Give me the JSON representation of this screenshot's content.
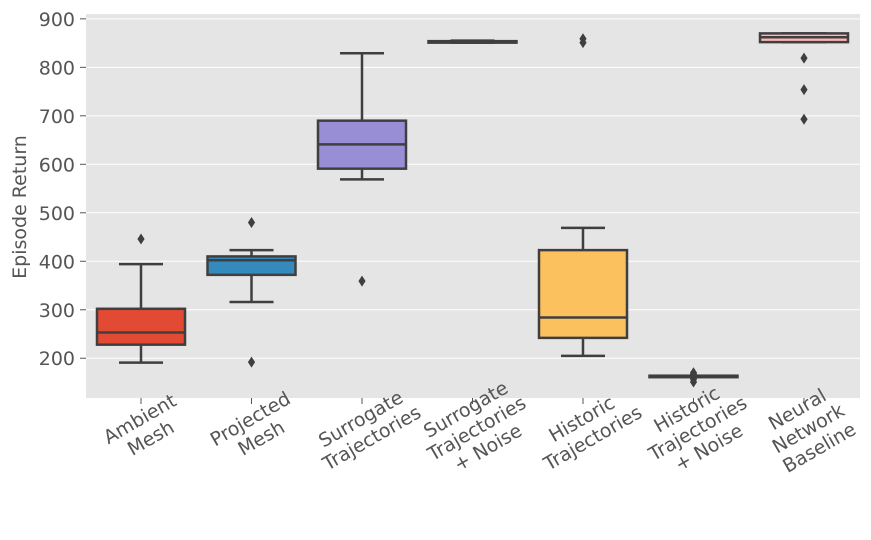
{
  "chart_data": {
    "type": "box",
    "title": "",
    "xlabel": "",
    "ylabel": "Episode Return",
    "ylim": [
      118,
      910
    ],
    "yticks": [
      200,
      300,
      400,
      500,
      600,
      700,
      800,
      900
    ],
    "grid": true,
    "categories": [
      {
        "label_lines": [
          "Ambient",
          "Mesh"
        ],
        "color": "#E24A33",
        "q1": 228,
        "median": 253,
        "q3": 302,
        "whisker_low": 191,
        "whisker_high": 394,
        "outliers": [
          446
        ]
      },
      {
        "label_lines": [
          "Projected",
          "Mesh"
        ],
        "color": "#348ABD",
        "q1": 372,
        "median": 402,
        "q3": 410,
        "whisker_low": 316,
        "whisker_high": 423,
        "outliers": [
          480,
          192
        ]
      },
      {
        "label_lines": [
          "Surrogate",
          "Trajectories"
        ],
        "color": "#988ED5",
        "q1": 591,
        "median": 641,
        "q3": 690,
        "whisker_low": 569,
        "whisker_high": 829,
        "outliers": [
          359
        ]
      },
      {
        "label_lines": [
          "Surrogate",
          "Trajectories",
          "+ Noise"
        ],
        "color": "#777777",
        "q1": 851,
        "median": 852,
        "q3": 854,
        "whisker_low": 851,
        "whisker_high": 855,
        "outliers": []
      },
      {
        "label_lines": [
          "Historic",
          "Trajectories"
        ],
        "color": "#FBC15E",
        "q1": 242,
        "median": 284,
        "q3": 423,
        "whisker_low": 205,
        "whisker_high": 469,
        "outliers": [
          851,
          859
        ]
      },
      {
        "label_lines": [
          "Historic",
          "Trajectories",
          "+ Noise"
        ],
        "color": "#8EBA42",
        "q1": 162,
        "median": 163,
        "q3": 164,
        "whisker_low": 162,
        "whisker_high": 164,
        "outliers": [
          151,
          157,
          167,
          170
        ]
      },
      {
        "label_lines": [
          "Neural",
          "Network",
          "Baseline"
        ],
        "color": "#FFB5B8",
        "q1": 852,
        "median": 862,
        "q3": 870,
        "whisker_low": 852,
        "whisker_high": 870,
        "outliers": [
          819,
          754,
          693
        ]
      }
    ]
  },
  "colors": {
    "plot_bg": "#E5E5E5",
    "grid": "#FFFFFF",
    "line": "#3F3F3F",
    "tick_text": "#555555"
  }
}
